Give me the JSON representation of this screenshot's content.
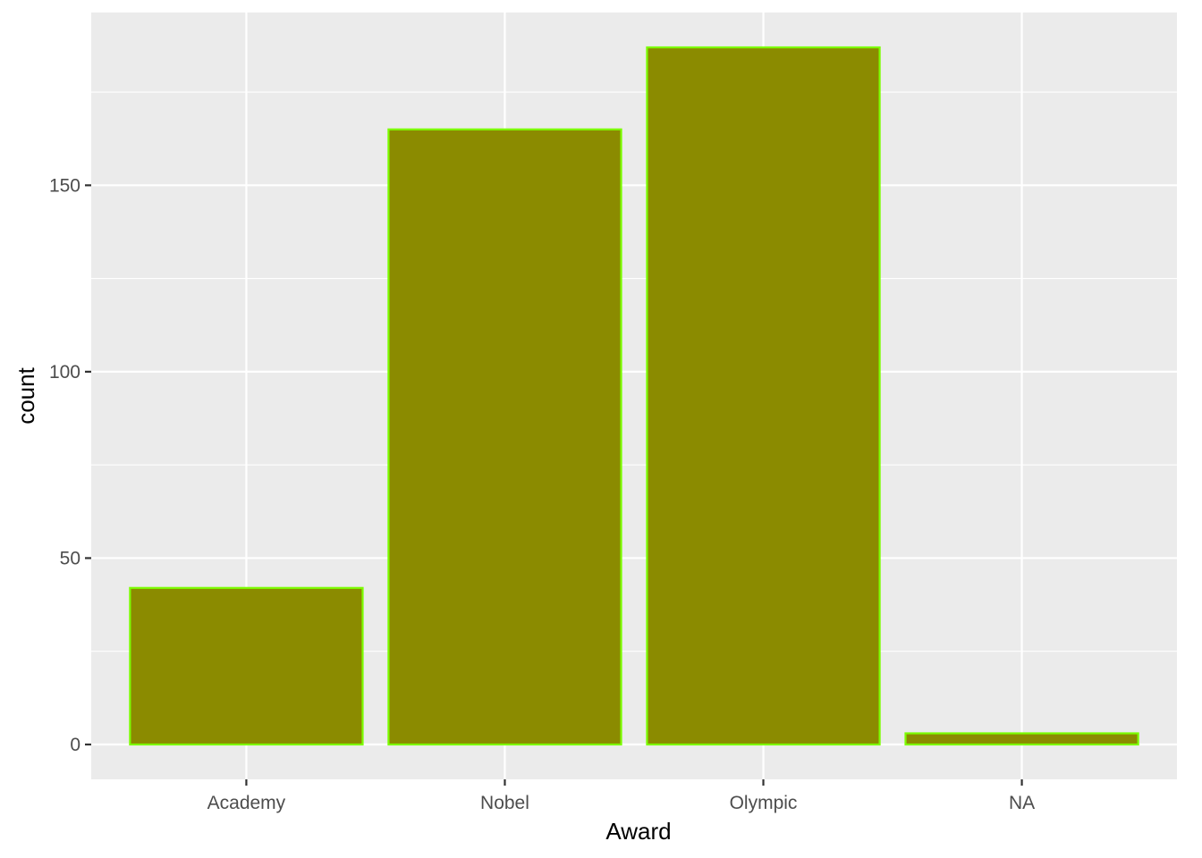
{
  "chart_data": {
    "type": "bar",
    "categories": [
      "Academy",
      "Nobel",
      "Olympic",
      "NA"
    ],
    "values": [
      42,
      165,
      187,
      3
    ],
    "title": "",
    "xlabel": "Award",
    "ylabel": "count",
    "ylim": [
      -9.35,
      196.35
    ],
    "yticks": [
      0,
      50,
      100,
      150
    ],
    "grid": true,
    "colors": {
      "panel_background": "#ebebeb",
      "grid": "#ffffff",
      "bar_fill": "#8b8b00",
      "bar_outline": "#7cfc00",
      "tick_label": "#4d4d4d",
      "tick_mark": "#333333"
    }
  }
}
